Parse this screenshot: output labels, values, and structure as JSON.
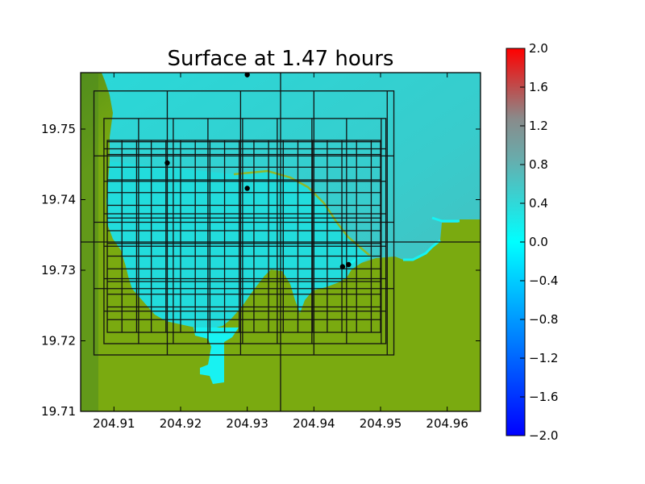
{
  "chart_data": {
    "type": "heatmap",
    "title": "Surface at 1.47 hours",
    "xlabel": "",
    "ylabel": "",
    "xlim": [
      204.905,
      204.965
    ],
    "ylim": [
      19.71,
      19.758
    ],
    "x_ticks": [
      204.91,
      204.92,
      204.93,
      204.94,
      204.95,
      204.96
    ],
    "x_tick_labels": [
      "204.91",
      "204.92",
      "204.93",
      "204.94",
      "204.95",
      "204.96"
    ],
    "y_ticks": [
      19.71,
      19.72,
      19.73,
      19.74,
      19.75
    ],
    "y_tick_labels": [
      "19.71",
      "19.72",
      "19.73",
      "19.74",
      "19.75"
    ],
    "colorbar": {
      "range": [
        -2.0,
        2.0
      ],
      "ticks": [
        2.0,
        1.6,
        1.2,
        0.8,
        0.4,
        0.0,
        -0.4,
        -0.8,
        -1.2,
        -1.6,
        -2.0
      ],
      "tick_labels": [
        "2.0",
        "1.6",
        "1.2",
        "0.8",
        "0.4",
        "0.0",
        "−0.4",
        "−0.8",
        "−1.2",
        "−1.6",
        "−2.0"
      ],
      "colors": {
        "min": "#0000ff",
        "neg_mid": "#00ffff",
        "pos_low": "#00ffff",
        "pos_mid": "#888888",
        "max": "#ff0000"
      }
    },
    "colors": {
      "land": "#7aaa10",
      "land_dark": "#4e8a20",
      "water_deep": "#3cc8c8",
      "water_shallow": "#25dede",
      "water_edge": "#18f4f4"
    },
    "gauges": [
      {
        "x": 204.93,
        "y": 19.7577
      },
      {
        "x": 204.918,
        "y": 19.7452
      },
      {
        "x": 204.93,
        "y": 19.7416
      },
      {
        "x": 204.9443,
        "y": 19.7305
      },
      {
        "x": 204.9452,
        "y": 19.7308
      }
    ],
    "grid_levels": [
      {
        "x0": 204.905,
        "x1": 204.965,
        "y0": 19.71,
        "y1": 19.758,
        "dx": 0.03,
        "dy": 0.024
      },
      {
        "x0": 204.907,
        "x1": 204.952,
        "y0": 19.718,
        "y1": 19.7554,
        "dx": 0.011,
        "dy": 0.0094
      },
      {
        "x0": 204.9085,
        "x1": 204.9508,
        "y0": 19.7196,
        "y1": 19.7515,
        "dx": 0.0052,
        "dy": 0.0046
      },
      {
        "x0": 204.909,
        "x1": 204.95,
        "y0": 19.7212,
        "y1": 19.7484,
        "dx": 0.0022,
        "dy": 0.0018
      }
    ]
  }
}
